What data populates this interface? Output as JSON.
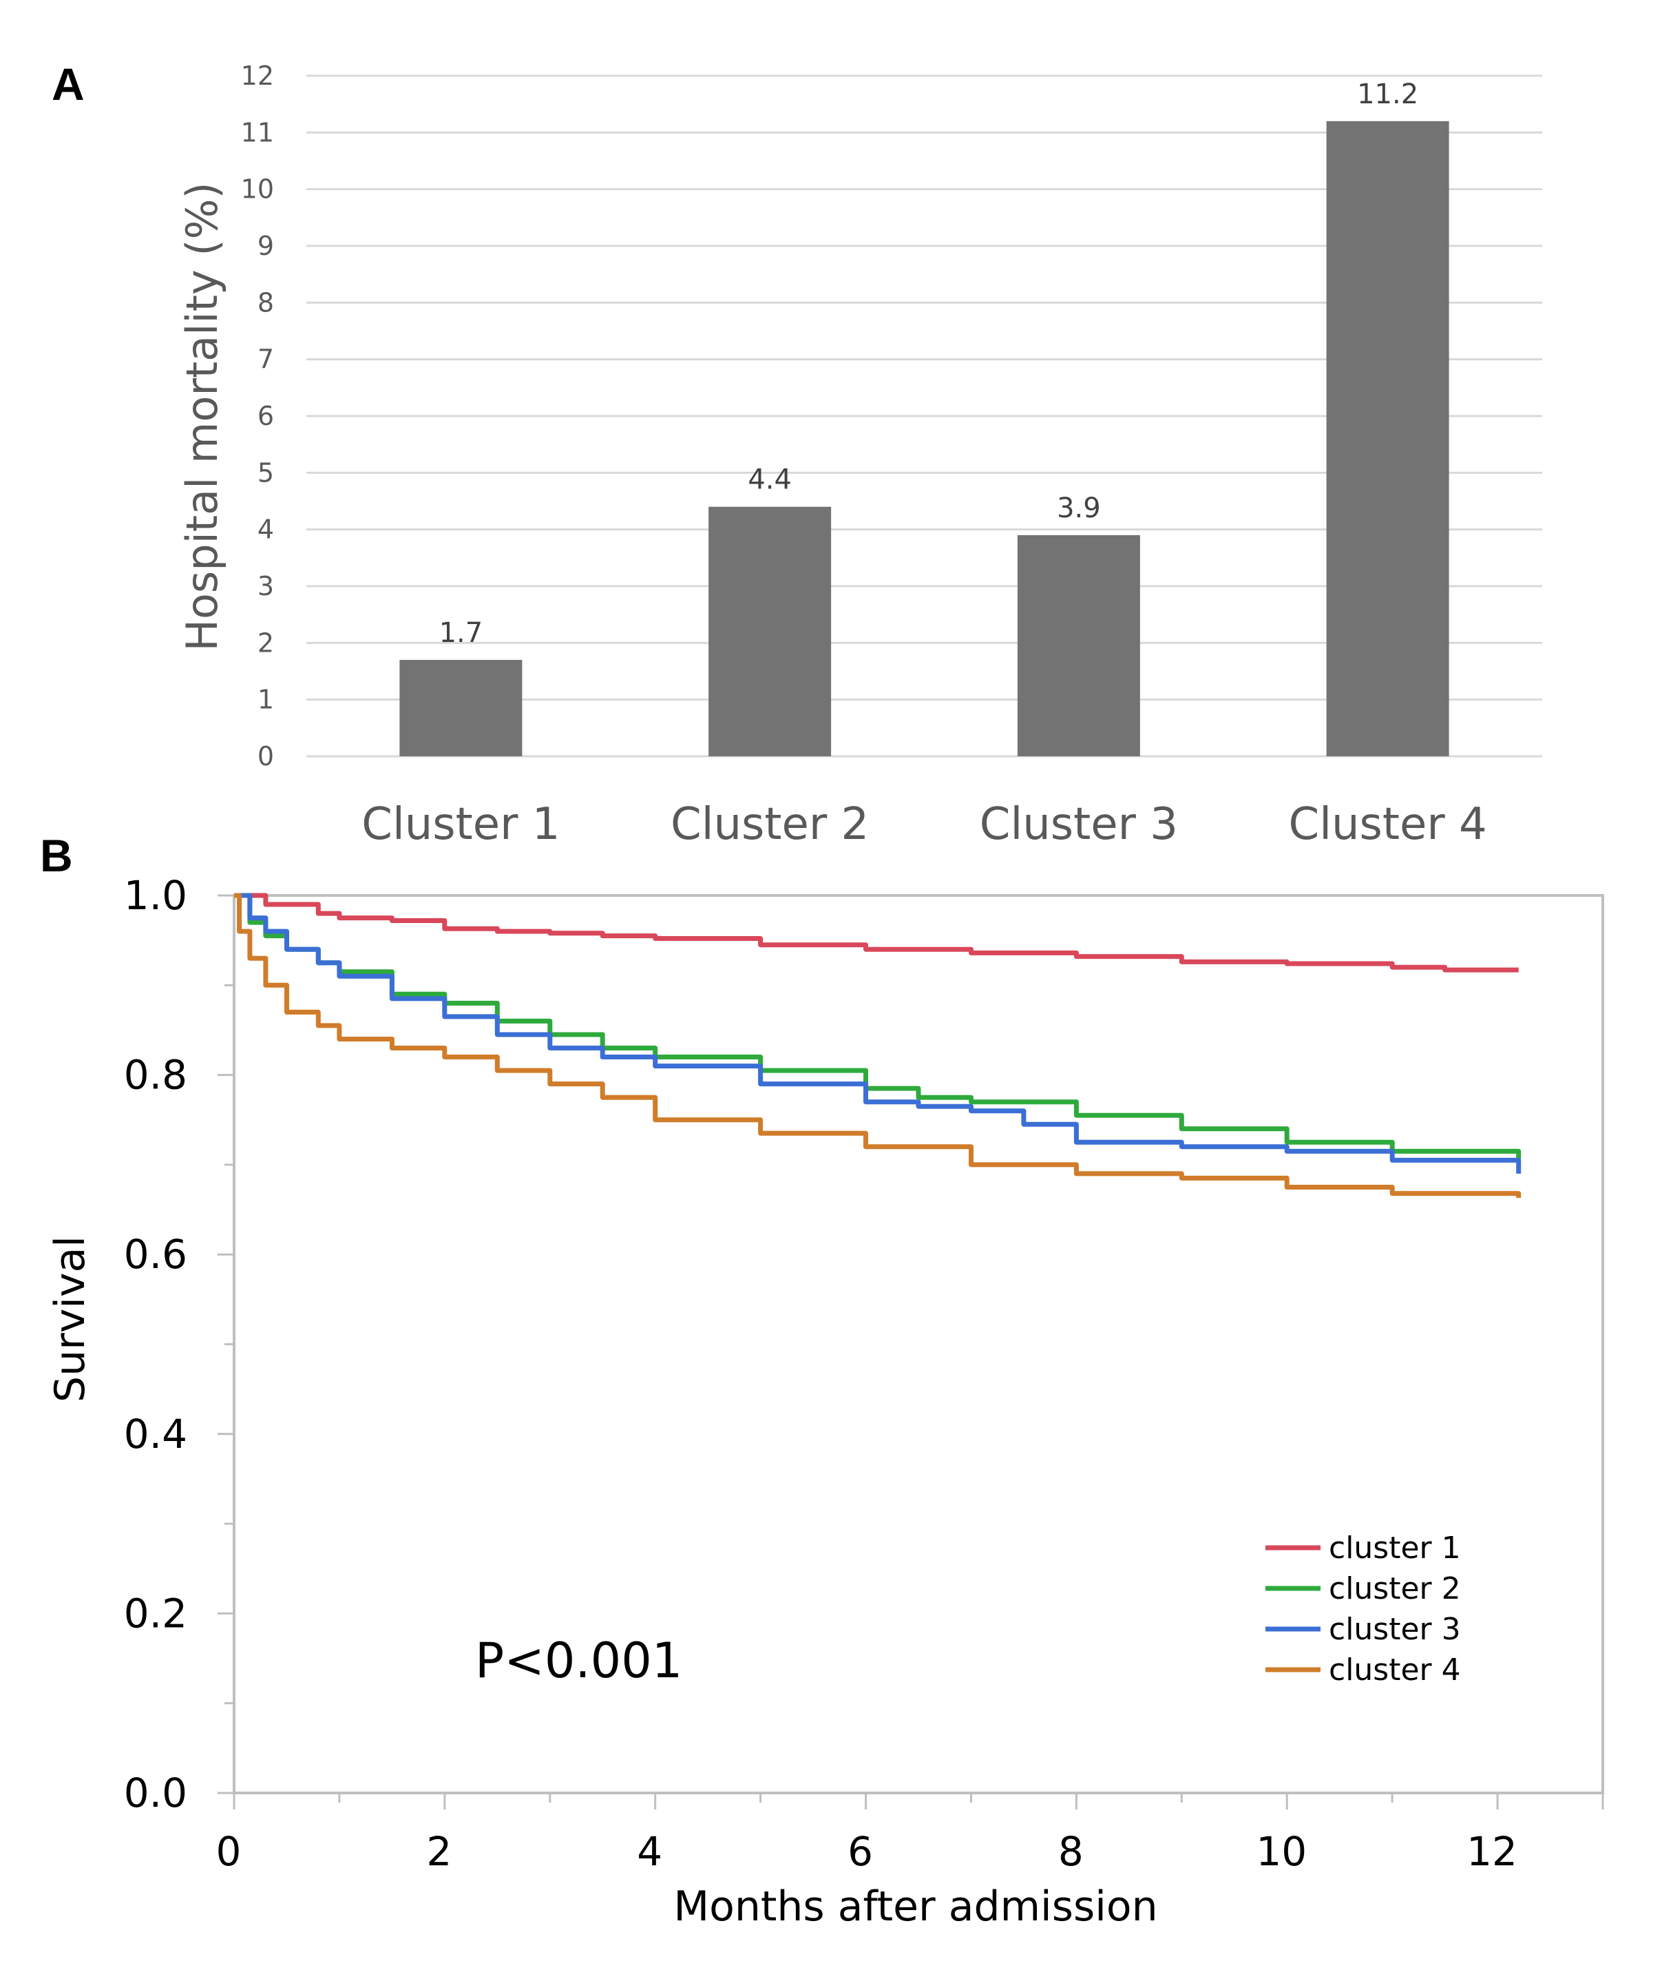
{
  "figure": {
    "panel_a_letter": "A",
    "panel_b_letter": "B"
  },
  "chart_data": [
    {
      "type": "bar",
      "panel": "A",
      "title": "",
      "xlabel": "",
      "ylabel": "Hospital mortality (%)",
      "categories": [
        "Cluster 1",
        "Cluster 2",
        "Cluster 3",
        "Cluster 4"
      ],
      "values": [
        1.7,
        4.4,
        3.9,
        11.2
      ],
      "data_labels": [
        "1.7",
        "4.4",
        "3.9",
        "11.2"
      ],
      "ylim": [
        0,
        12
      ],
      "yticks": [
        "0",
        "1",
        "2",
        "3",
        "4",
        "5",
        "6",
        "7",
        "8",
        "9",
        "10",
        "11",
        "12"
      ],
      "grid": true,
      "bar_color": "#737373"
    },
    {
      "type": "line",
      "panel": "B",
      "title": "",
      "xlabel": "Months after admission",
      "ylabel": "Survival",
      "xlim": [
        0,
        13
      ],
      "ylim": [
        0,
        1
      ],
      "xticks": [
        "0",
        "2",
        "4",
        "6",
        "8",
        "10",
        "12"
      ],
      "yticks": [
        "0.0",
        "0.2",
        "0.4",
        "0.6",
        "0.8",
        "1.0"
      ],
      "annotation": "P<0.001",
      "legend_position": "lower-right",
      "series": [
        {
          "name": "cluster 1",
          "color": "#d9475a",
          "points": [
            [
              0,
              1.0
            ],
            [
              0.3,
              0.99
            ],
            [
              0.8,
              0.98
            ],
            [
              1.0,
              0.975
            ],
            [
              1.5,
              0.972
            ],
            [
              2.0,
              0.963
            ],
            [
              2.5,
              0.96
            ],
            [
              3.0,
              0.958
            ],
            [
              3.5,
              0.955
            ],
            [
              4.0,
              0.952
            ],
            [
              5.0,
              0.945
            ],
            [
              6.0,
              0.94
            ],
            [
              7.0,
              0.936
            ],
            [
              8.0,
              0.932
            ],
            [
              9.0,
              0.926
            ],
            [
              10.0,
              0.924
            ],
            [
              11.0,
              0.92
            ],
            [
              11.5,
              0.917
            ],
            [
              12.2,
              0.917
            ]
          ]
        },
        {
          "name": "cluster 2",
          "color": "#2eaa3c",
          "points": [
            [
              0,
              1.0
            ],
            [
              0.15,
              0.97
            ],
            [
              0.3,
              0.955
            ],
            [
              0.5,
              0.94
            ],
            [
              0.8,
              0.925
            ],
            [
              1.0,
              0.915
            ],
            [
              1.5,
              0.89
            ],
            [
              2.0,
              0.88
            ],
            [
              2.5,
              0.86
            ],
            [
              3.0,
              0.845
            ],
            [
              3.5,
              0.83
            ],
            [
              4.0,
              0.82
            ],
            [
              5.0,
              0.805
            ],
            [
              6.0,
              0.785
            ],
            [
              6.5,
              0.775
            ],
            [
              7.0,
              0.77
            ],
            [
              8.0,
              0.755
            ],
            [
              9.0,
              0.74
            ],
            [
              10.0,
              0.725
            ],
            [
              11.0,
              0.715
            ],
            [
              12.2,
              0.705
            ]
          ]
        },
        {
          "name": "cluster 3",
          "color": "#3b6fd6",
          "points": [
            [
              0,
              1.0
            ],
            [
              0.15,
              0.975
            ],
            [
              0.3,
              0.96
            ],
            [
              0.5,
              0.94
            ],
            [
              0.8,
              0.925
            ],
            [
              1.0,
              0.91
            ],
            [
              1.5,
              0.885
            ],
            [
              2.0,
              0.865
            ],
            [
              2.5,
              0.845
            ],
            [
              3.0,
              0.83
            ],
            [
              3.5,
              0.82
            ],
            [
              4.0,
              0.81
            ],
            [
              5.0,
              0.79
            ],
            [
              6.0,
              0.77
            ],
            [
              6.5,
              0.765
            ],
            [
              7.0,
              0.76
            ],
            [
              7.5,
              0.745
            ],
            [
              8.0,
              0.725
            ],
            [
              9.0,
              0.72
            ],
            [
              10.0,
              0.715
            ],
            [
              11.0,
              0.705
            ],
            [
              12.2,
              0.69
            ]
          ]
        },
        {
          "name": "cluster 4",
          "color": "#d07c2a",
          "points": [
            [
              0,
              1.0
            ],
            [
              0.05,
              0.96
            ],
            [
              0.15,
              0.93
            ],
            [
              0.3,
              0.9
            ],
            [
              0.5,
              0.87
            ],
            [
              0.8,
              0.855
            ],
            [
              1.0,
              0.84
            ],
            [
              1.5,
              0.83
            ],
            [
              2.0,
              0.82
            ],
            [
              2.5,
              0.805
            ],
            [
              3.0,
              0.79
            ],
            [
              3.5,
              0.775
            ],
            [
              4.0,
              0.75
            ],
            [
              5.0,
              0.735
            ],
            [
              6.0,
              0.72
            ],
            [
              7.0,
              0.7
            ],
            [
              8.0,
              0.69
            ],
            [
              9.0,
              0.685
            ],
            [
              10.0,
              0.675
            ],
            [
              11.0,
              0.668
            ],
            [
              12.2,
              0.663
            ]
          ]
        }
      ]
    }
  ]
}
